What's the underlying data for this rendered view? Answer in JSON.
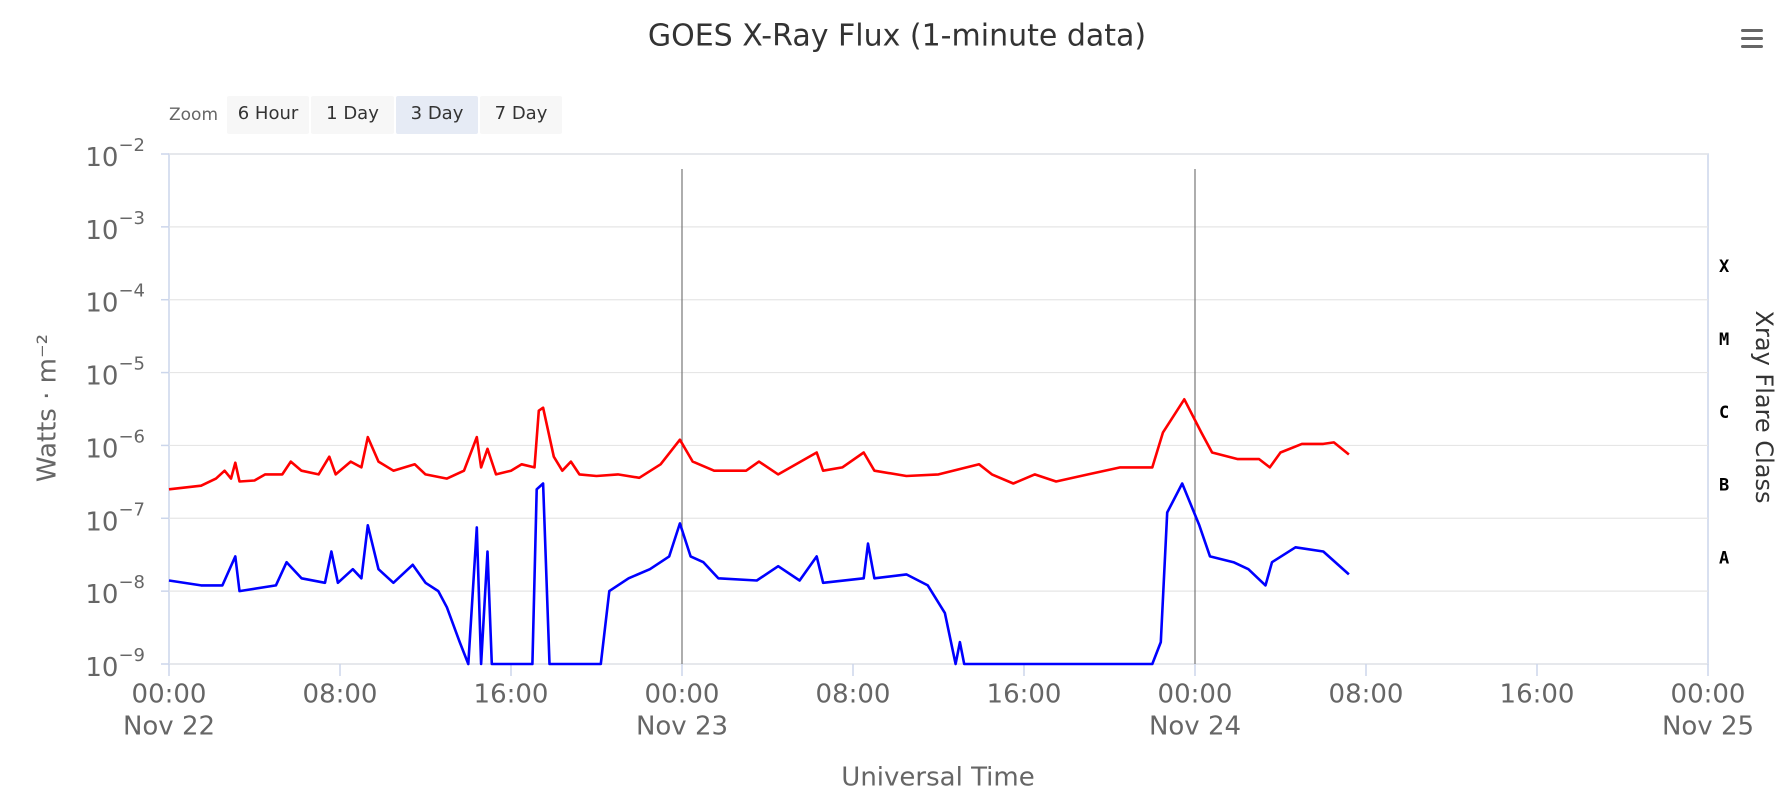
{
  "chart_data": {
    "type": "line",
    "title": "GOES X-Ray Flux (1-minute data)",
    "x_title": "Universal Time",
    "y_title": "Watts · m⁻²",
    "y2_title": "Xray Flare Class",
    "log_y": true,
    "grid": true,
    "xlim": [
      "Nov 22 00:00",
      "Nov 25 00:00"
    ],
    "xticks": [
      {
        "value": "Nov 22 00:00",
        "label": "00:00",
        "date": "Nov 22"
      },
      {
        "value": "Nov 22 08:00",
        "label": "08:00"
      },
      {
        "value": "Nov 22 16:00",
        "label": "16:00"
      },
      {
        "value": "Nov 23 00:00",
        "label": "00:00",
        "date": "Nov 23"
      },
      {
        "value": "Nov 23 08:00",
        "label": "08:00"
      },
      {
        "value": "Nov 23 16:00",
        "label": "16:00"
      },
      {
        "value": "Nov 24 00:00",
        "label": "00:00",
        "date": "Nov 24"
      },
      {
        "value": "Nov 24 08:00",
        "label": "08:00"
      },
      {
        "value": "Nov 24 16:00",
        "label": "16:00"
      },
      {
        "value": "Nov 25 00:00",
        "label": "00:00",
        "date": "Nov 25"
      }
    ],
    "ylim": [
      1e-09,
      0.01
    ],
    "yticks": [
      {
        "value": 0.01,
        "label": "10",
        "exponent": "−2"
      },
      {
        "value": 0.001,
        "label": "10",
        "exponent": "−3"
      },
      {
        "value": 0.0001,
        "label": "10",
        "exponent": "−4"
      },
      {
        "value": 1e-05,
        "label": "10",
        "exponent": "−5"
      },
      {
        "value": 1e-06,
        "label": "10",
        "exponent": "−6"
      },
      {
        "value": 1e-07,
        "label": "10",
        "exponent": "−7"
      },
      {
        "value": 1e-08,
        "label": "10",
        "exponent": "−8"
      },
      {
        "value": 1e-09,
        "label": "10",
        "exponent": "−9"
      }
    ],
    "y2lim": [
      1e-09,
      0.01
    ],
    "y2ticks": [
      {
        "value": 0.00028,
        "label": "X"
      },
      {
        "value": 2.8e-05,
        "label": "M"
      },
      {
        "value": 2.8e-06,
        "label": "C"
      },
      {
        "value": 2.8e-07,
        "label": "B"
      },
      {
        "value": 2.8e-08,
        "label": "A"
      }
    ],
    "plot_lines": [
      "Nov 23 00:00",
      "Nov 24 00:00"
    ],
    "series": [
      {
        "color": "#ff0000",
        "x": [
          "Nov 22 00:00",
          "Nov 22 01:30",
          "Nov 22 02:12",
          "Nov 22 02:36",
          "Nov 22 02:54",
          "Nov 22 03:06",
          "Nov 22 03:18",
          "Nov 22 04:00",
          "Nov 22 04:30",
          "Nov 22 05:18",
          "Nov 22 05:42",
          "Nov 22 06:12",
          "Nov 22 07:00",
          "Nov 22 07:30",
          "Nov 22 07:48",
          "Nov 22 08:30",
          "Nov 22 09:00",
          "Nov 22 09:18",
          "Nov 22 09:48",
          "Nov 22 10:30",
          "Nov 22 11:30",
          "Nov 22 12:00",
          "Nov 22 13:00",
          "Nov 22 13:48",
          "Nov 22 14:24",
          "Nov 22 14:36",
          "Nov 22 14:54",
          "Nov 22 15:18",
          "Nov 22 16:00",
          "Nov 22 16:30",
          "Nov 22 17:06",
          "Nov 22 17:18",
          "Nov 22 17:30",
          "Nov 22 18:00",
          "Nov 22 18:24",
          "Nov 22 18:48",
          "Nov 22 19:12",
          "Nov 22 20:00",
          "Nov 22 21:00",
          "Nov 22 22:00",
          "Nov 22 23:00",
          "Nov 22 23:54",
          "Nov 23 00:30",
          "Nov 23 01:30",
          "Nov 23 03:00",
          "Nov 23 03:36",
          "Nov 23 04:30",
          "Nov 23 06:18",
          "Nov 23 06:36",
          "Nov 23 07:30",
          "Nov 23 08:30",
          "Nov 23 09:00",
          "Nov 23 10:30",
          "Nov 23 12:00",
          "Nov 23 13:54",
          "Nov 23 14:30",
          "Nov 23 15:30",
          "Nov 23 16:30",
          "Nov 23 17:30",
          "Nov 23 19:00",
          "Nov 23 20:30",
          "Nov 23 22:00",
          "Nov 23 22:30",
          "Nov 23 23:30",
          "Nov 24 00:18",
          "Nov 24 00:48",
          "Nov 24 02:00",
          "Nov 24 03:00",
          "Nov 24 03:30",
          "Nov 24 04:00",
          "Nov 24 05:00",
          "Nov 24 06:00",
          "Nov 24 06:30",
          "Nov 24 07:12"
        ],
        "values": [
          2.5e-07,
          2.8e-07,
          3.5e-07,
          4.5e-07,
          3.5e-07,
          5.8e-07,
          3.2e-07,
          3.3e-07,
          4e-07,
          4e-07,
          6e-07,
          4.5e-07,
          4e-07,
          7e-07,
          4e-07,
          6e-07,
          5e-07,
          1.3e-06,
          6e-07,
          4.5e-07,
          5.5e-07,
          4e-07,
          3.5e-07,
          4.5e-07,
          1.3e-06,
          5e-07,
          9e-07,
          4e-07,
          4.5e-07,
          5.5e-07,
          5e-07,
          3e-06,
          3.3e-06,
          7e-07,
          4.5e-07,
          6e-07,
          4e-07,
          3.8e-07,
          4e-07,
          3.6e-07,
          5.5e-07,
          1.2e-06,
          6e-07,
          4.5e-07,
          4.5e-07,
          6e-07,
          4e-07,
          8e-07,
          4.5e-07,
          5e-07,
          8e-07,
          4.5e-07,
          3.8e-07,
          4e-07,
          5.5e-07,
          4e-07,
          3e-07,
          4e-07,
          3.2e-07,
          4e-07,
          5e-07,
          5e-07,
          1.5e-06,
          4.3e-06,
          1.5e-06,
          8e-07,
          6.5e-07,
          6.5e-07,
          5e-07,
          8e-07,
          1.05e-06,
          1.05e-06,
          1.1e-06,
          7.5e-07
        ]
      },
      {
        "color": "#0000ff",
        "x": [
          "Nov 22 00:00",
          "Nov 22 01:30",
          "Nov 22 02:30",
          "Nov 22 03:06",
          "Nov 22 03:18",
          "Nov 22 05:00",
          "Nov 22 05:30",
          "Nov 22 06:12",
          "Nov 22 07:18",
          "Nov 22 07:36",
          "Nov 22 07:54",
          "Nov 22 08:36",
          "Nov 22 09:00",
          "Nov 22 09:18",
          "Nov 22 09:48",
          "Nov 22 10:30",
          "Nov 22 11:24",
          "Nov 22 12:00",
          "Nov 22 12:36",
          "Nov 22 13:00",
          "Nov 22 13:36",
          "Nov 22 14:00",
          "Nov 22 14:24",
          "Nov 22 14:36",
          "Nov 22 14:54",
          "Nov 22 15:06",
          "Nov 22 17:00",
          "Nov 22 17:12",
          "Nov 22 17:30",
          "Nov 22 17:48",
          "Nov 22 20:12",
          "Nov 22 20:36",
          "Nov 22 21:30",
          "Nov 22 22:30",
          "Nov 22 23:24",
          "Nov 22 23:54",
          "Nov 23 00:24",
          "Nov 23 01:00",
          "Nov 23 01:42",
          "Nov 23 03:30",
          "Nov 23 04:30",
          "Nov 23 05:30",
          "Nov 23 06:18",
          "Nov 23 06:36",
          "Nov 23 08:30",
          "Nov 23 08:42",
          "Nov 23 09:00",
          "Nov 23 10:30",
          "Nov 23 11:30",
          "Nov 23 12:18",
          "Nov 23 12:48",
          "Nov 23 13:00",
          "Nov 23 13:12",
          "Nov 23 22:00",
          "Nov 23 22:24",
          "Nov 23 22:42",
          "Nov 23 23:24",
          "Nov 24 00:12",
          "Nov 24 00:42",
          "Nov 24 01:48",
          "Nov 24 02:30",
          "Nov 24 03:18",
          "Nov 24 03:36",
          "Nov 24 04:42",
          "Nov 24 06:00",
          "Nov 24 07:12"
        ],
        "values": [
          1.4e-08,
          1.2e-08,
          1.2e-08,
          3e-08,
          1e-08,
          1.2e-08,
          2.5e-08,
          1.5e-08,
          1.3e-08,
          3.5e-08,
          1.3e-08,
          2e-08,
          1.5e-08,
          8e-08,
          2e-08,
          1.3e-08,
          2.3e-08,
          1.3e-08,
          1e-08,
          6e-09,
          2e-09,
          1e-09,
          7.5e-08,
          1e-09,
          3.5e-08,
          1e-09,
          1e-09,
          2.5e-07,
          3e-07,
          1e-09,
          1e-09,
          1e-08,
          1.5e-08,
          2e-08,
          3e-08,
          8.5e-08,
          3e-08,
          2.5e-08,
          1.5e-08,
          1.4e-08,
          2.2e-08,
          1.4e-08,
          3e-08,
          1.3e-08,
          1.5e-08,
          4.5e-08,
          1.5e-08,
          1.7e-08,
          1.2e-08,
          5e-09,
          1e-09,
          2e-09,
          1e-09,
          1e-09,
          2e-09,
          1.2e-07,
          3e-07,
          8e-08,
          3e-08,
          2.5e-08,
          2e-08,
          1.2e-08,
          2.5e-08,
          4e-08,
          3.5e-08,
          1.7e-08
        ]
      }
    ]
  },
  "zoom": {
    "label": "Zoom",
    "buttons": [
      "6 Hour",
      "1 Day",
      "3 Day",
      "7 Day"
    ],
    "selected": "3 Day"
  }
}
